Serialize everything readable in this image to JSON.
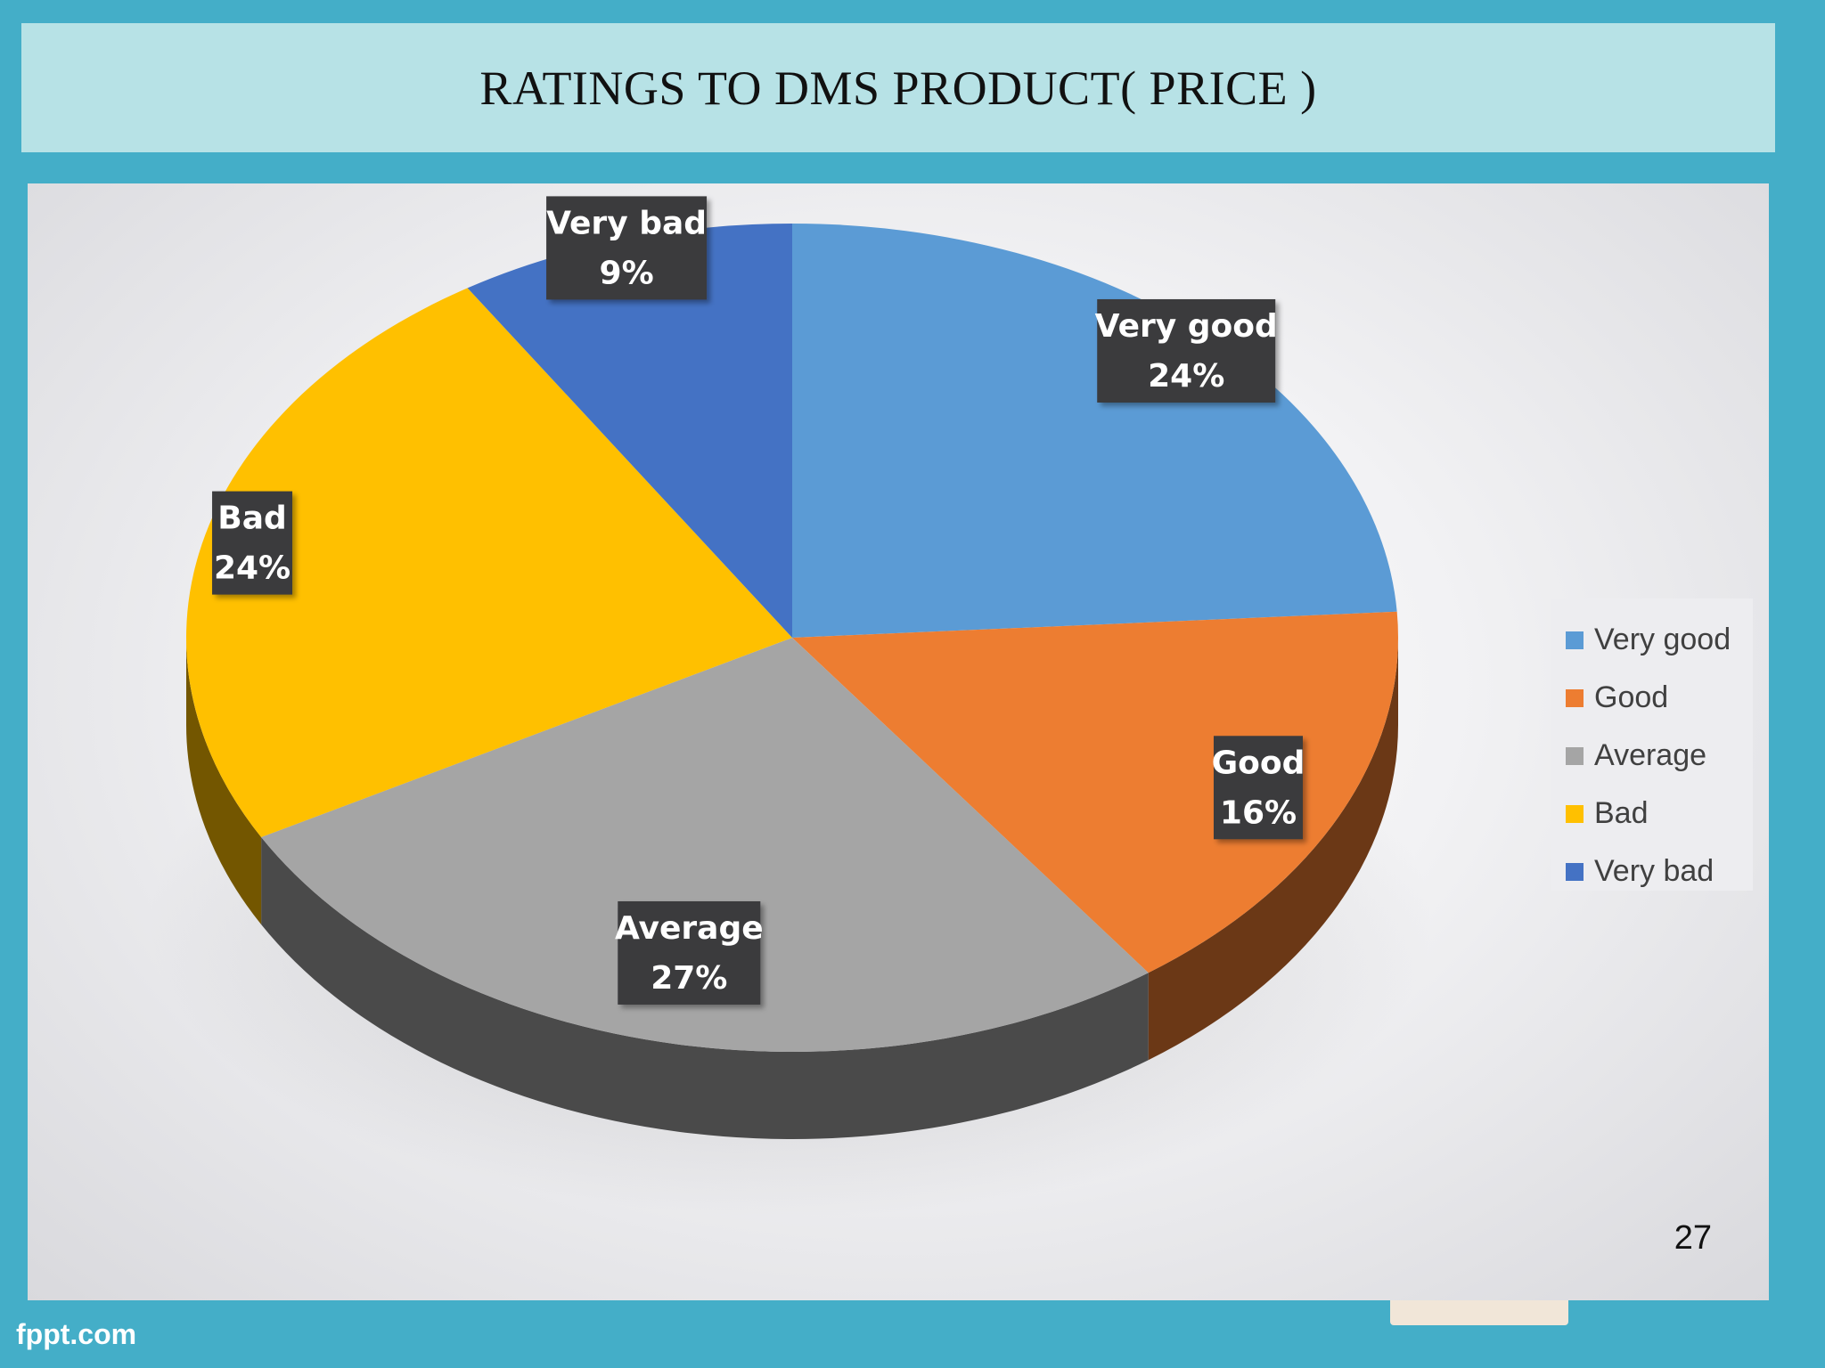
{
  "title": "RATINGS TO DMS PRODUCT( PRICE )",
  "page_number": "27",
  "footer": {
    "brand": "fppt.com"
  },
  "chart_data": {
    "type": "pie",
    "title": "",
    "categories": [
      "Very good",
      "Good",
      "Average",
      "Bad",
      "Very bad"
    ],
    "values": [
      24,
      16,
      27,
      24,
      9
    ],
    "value_labels": [
      "24%",
      "16%",
      "27%",
      "24%",
      "9%"
    ],
    "colors": [
      "#5b9bd5",
      "#ed7d31",
      "#a5a5a5",
      "#ffc000",
      "#4472c4"
    ],
    "legend_position": "right",
    "three_d": true
  }
}
